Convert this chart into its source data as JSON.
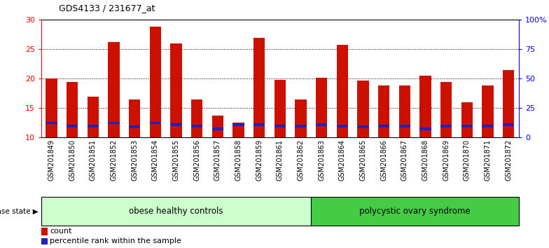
{
  "title": "GDS4133 / 231677_at",
  "samples": [
    "GSM201849",
    "GSM201850",
    "GSM201851",
    "GSM201852",
    "GSM201853",
    "GSM201854",
    "GSM201855",
    "GSM201856",
    "GSM201857",
    "GSM201858",
    "GSM201859",
    "GSM201861",
    "GSM201862",
    "GSM201863",
    "GSM201864",
    "GSM201865",
    "GSM201866",
    "GSM201867",
    "GSM201868",
    "GSM201869",
    "GSM201870",
    "GSM201871",
    "GSM201872"
  ],
  "counts": [
    20.0,
    19.5,
    17.0,
    26.2,
    16.5,
    28.8,
    26.0,
    16.5,
    13.7,
    12.5,
    27.0,
    19.8,
    16.5,
    20.2,
    25.7,
    19.7,
    18.8,
    18.8,
    20.5,
    19.5,
    16.0,
    18.8,
    21.5
  ],
  "percentile_values": [
    12.5,
    12.0,
    12.0,
    12.5,
    11.8,
    12.5,
    12.2,
    12.0,
    11.5,
    12.2,
    12.2,
    12.0,
    12.0,
    12.2,
    12.0,
    11.8,
    12.0,
    12.0,
    11.5,
    12.0,
    12.0,
    12.0,
    12.2
  ],
  "bar_color": "#cc1100",
  "blue_color": "#2222bb",
  "ymin": 10,
  "ymax": 30,
  "yticks_left": [
    10,
    15,
    20,
    25,
    30
  ],
  "yticks_right": [
    0,
    25,
    50,
    75,
    100
  ],
  "ytick_labels_right": [
    "0",
    "25",
    "50",
    "75",
    "100%"
  ],
  "group1_label": "obese healthy controls",
  "group2_label": "polycystic ovary syndrome",
  "group1_count": 13,
  "group2_count": 10,
  "legend_count_label": "count",
  "legend_pct_label": "percentile rank within the sample",
  "disease_state_label": "disease state",
  "group1_bg": "#ccffcc",
  "group2_bg": "#44cc44"
}
